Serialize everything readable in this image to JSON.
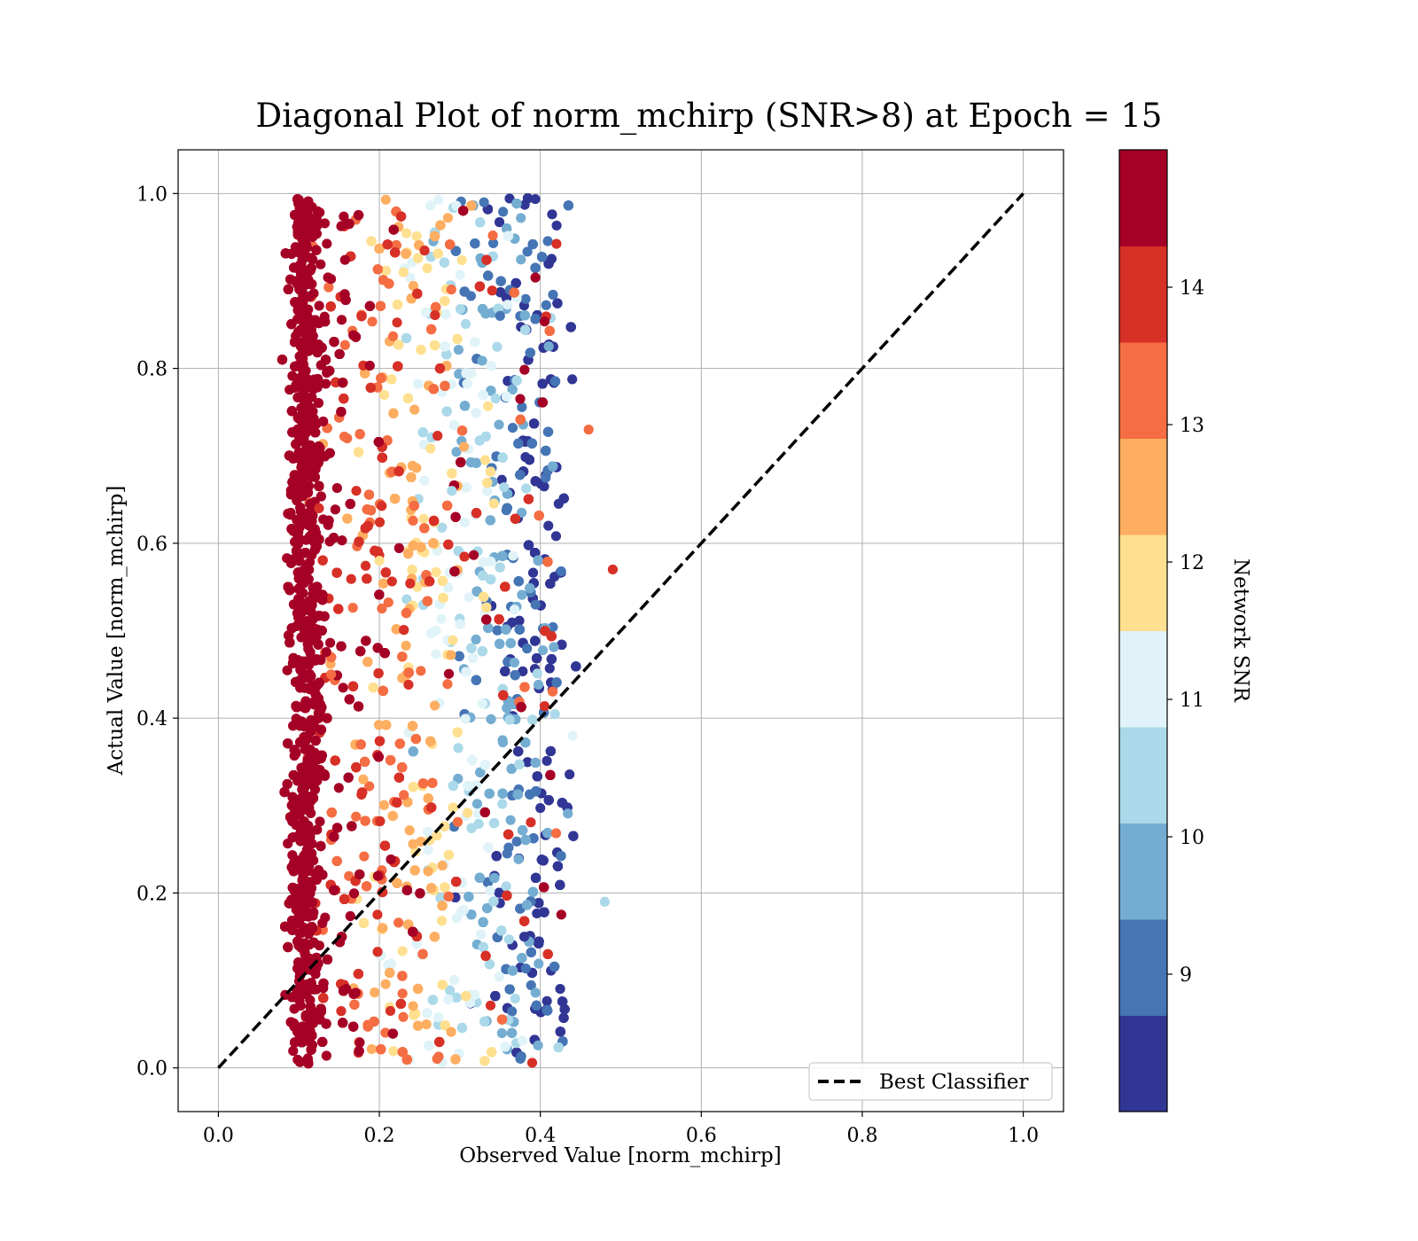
{
  "chart_data": {
    "type": "scatter",
    "title": "Diagonal Plot of norm_mchirp (SNR>8) at Epoch = 15",
    "xlabel": "Observed Value [norm_mchirp]",
    "ylabel": "Actual Value [norm_mchirp]",
    "xlim": [
      -0.05,
      1.05
    ],
    "ylim": [
      -0.05,
      1.05
    ],
    "xticks": [
      "0.0",
      "0.2",
      "0.4",
      "0.6",
      "0.8",
      "1.0"
    ],
    "yticks": [
      "0.0",
      "0.2",
      "0.4",
      "0.6",
      "0.8",
      "1.0"
    ],
    "xtick_values": [
      0.0,
      0.2,
      0.4,
      0.6,
      0.8,
      1.0
    ],
    "ytick_values": [
      0.0,
      0.2,
      0.4,
      0.6,
      0.8,
      1.0
    ],
    "grid": true,
    "legend": {
      "placement": "lower-right",
      "entries": [
        "Best Classifier"
      ]
    },
    "reference_line": {
      "name": "Best Classifier",
      "x": [
        0.0,
        1.0
      ],
      "y": [
        0.0,
        1.0
      ],
      "style": "dashed",
      "color": "#000000"
    },
    "colorbar": {
      "label": "Network SNR",
      "range": [
        8,
        15
      ],
      "ticks": [
        "9",
        "10",
        "11",
        "12",
        "13",
        "14"
      ],
      "tick_values": [
        9,
        10,
        11,
        12,
        13,
        14
      ],
      "colors": [
        "#313695",
        "#4575b4",
        "#74add1",
        "#abd9e9",
        "#e0f3f8",
        "#fee090",
        "#fdae61",
        "#f46d43",
        "#d73027",
        "#a50026"
      ]
    },
    "points": [
      {
        "x": 0.098,
        "y": 0.52,
        "snr": 14.6
      },
      {
        "x": 0.105,
        "y": 0.83,
        "snr": 14.8
      },
      {
        "x": 0.112,
        "y": 0.21,
        "snr": 14.5
      },
      {
        "x": 0.125,
        "y": 0.64,
        "snr": 14.2
      },
      {
        "x": 0.14,
        "y": 0.45,
        "snr": 13.6
      },
      {
        "x": 0.16,
        "y": 0.72,
        "snr": 13.1
      },
      {
        "x": 0.18,
        "y": 0.33,
        "snr": 12.6
      },
      {
        "x": 0.2,
        "y": 0.58,
        "snr": 12.1
      },
      {
        "x": 0.23,
        "y": 0.91,
        "snr": 11.5
      },
      {
        "x": 0.26,
        "y": 0.27,
        "snr": 10.8
      },
      {
        "x": 0.29,
        "y": 0.66,
        "snr": 10.2
      },
      {
        "x": 0.32,
        "y": 0.49,
        "snr": 9.6
      },
      {
        "x": 0.35,
        "y": 0.86,
        "snr": 9.1
      },
      {
        "x": 0.38,
        "y": 0.15,
        "snr": 8.6
      },
      {
        "x": 0.41,
        "y": 0.62,
        "snr": 8.3
      },
      {
        "x": 0.44,
        "y": 0.38,
        "snr": 11.2
      },
      {
        "x": 0.46,
        "y": 0.73,
        "snr": 13.4
      },
      {
        "x": 0.48,
        "y": 0.19,
        "snr": 10.4
      },
      {
        "x": 0.49,
        "y": 0.57,
        "snr": 13.9
      },
      {
        "x": 0.33,
        "y": 0.99,
        "snr": 8.9
      }
    ]
  }
}
